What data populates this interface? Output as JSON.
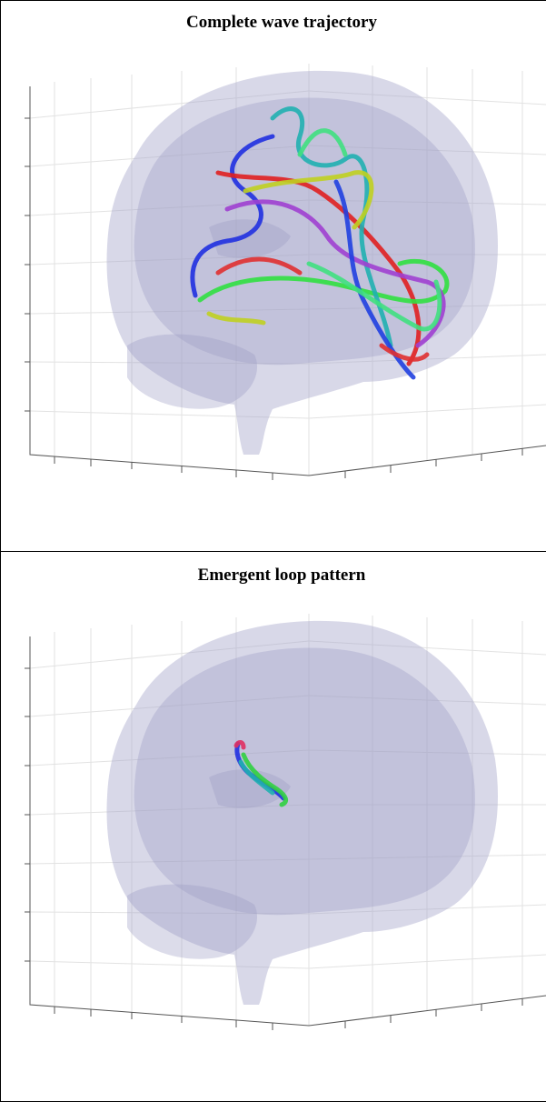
{
  "panels": [
    {
      "title": "Complete wave trajectory"
    },
    {
      "title": "Emergent loop pattern"
    }
  ]
}
